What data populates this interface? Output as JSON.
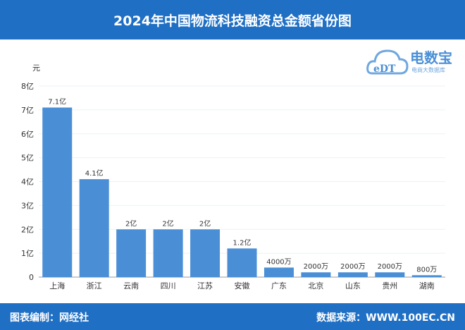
{
  "header": {
    "title": "2024年中国物流科技融资总金额省份图"
  },
  "logo": {
    "name": "电数宝",
    "subtitle": "电商大数据库",
    "mark": "eDT"
  },
  "footer": {
    "left": "图表编制：网经社",
    "right": "数据来源：WWW.100EC.CN"
  },
  "chart_data": {
    "type": "bar",
    "title": "",
    "ylabel": "元",
    "ylim": [
      0,
      8
    ],
    "yunit": "亿",
    "yticks": [
      "0",
      "1亿",
      "2亿",
      "3亿",
      "4亿",
      "5亿",
      "6亿",
      "7亿",
      "8亿"
    ],
    "grid": true,
    "color": "#4a8fd6",
    "categories": [
      "上海",
      "浙江",
      "云南",
      "四川",
      "江苏",
      "安徽",
      "广东",
      "北京",
      "山东",
      "贵州",
      "湖南"
    ],
    "values": [
      7.1,
      4.1,
      2,
      2,
      2,
      1.2,
      0.4,
      0.2,
      0.2,
      0.2,
      0.08
    ],
    "labels": [
      "7.1亿",
      "4.1亿",
      "2亿",
      "2亿",
      "2亿",
      "1.2亿",
      "4000万",
      "2000万",
      "2000万",
      "2000万",
      "800万"
    ]
  }
}
